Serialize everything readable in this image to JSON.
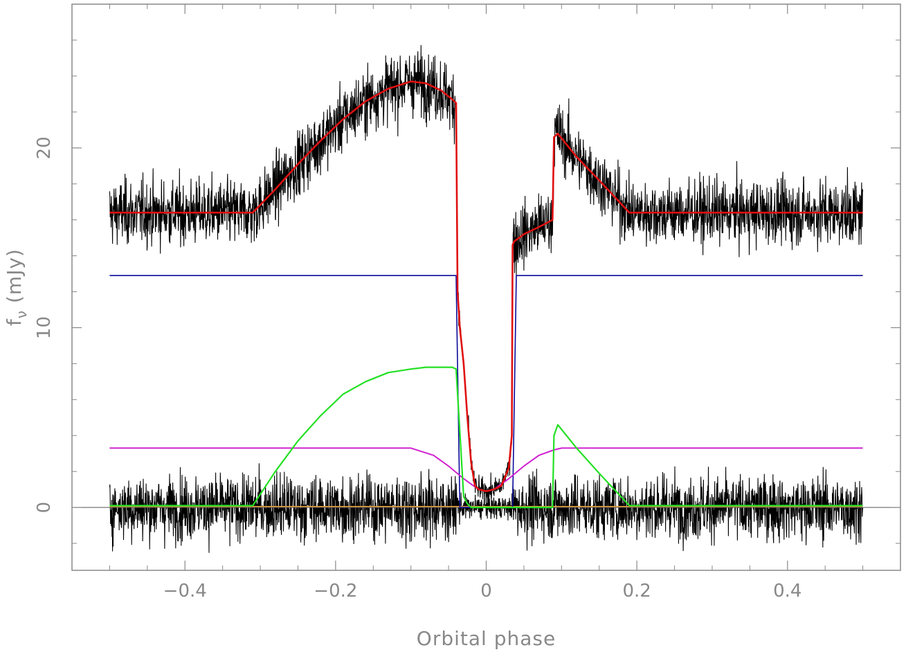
{
  "chart_data": {
    "type": "line",
    "title": "",
    "xlabel": "Orbital phase",
    "ylabel": "f_ν (mJy)",
    "ylabel_main": "f",
    "ylabel_sub": "ν",
    "ylabel_units": " (mJy)",
    "xlim": [
      -0.55,
      0.55
    ],
    "ylim": [
      -3.5,
      28
    ],
    "xticks": [
      -0.4,
      -0.2,
      0,
      0.2,
      0.4
    ],
    "xtick_labels": [
      "−0.4",
      "−0.2",
      "0",
      "0.2",
      "0.4"
    ],
    "yticks": [
      0,
      10,
      20
    ],
    "ytick_labels": [
      "0",
      "10",
      "20"
    ],
    "grid": false,
    "zero_line": 0,
    "colors": {
      "data": "#000000",
      "total_model": "#e01010",
      "white_dwarf": "#0a0a9a",
      "bright_spot": "#22e022",
      "disc": "#d020d0",
      "secondary": "#e8a040",
      "axes": "#888888"
    },
    "series": [
      {
        "key": "total_model",
        "color": "#e01010",
        "width": 2.6,
        "x": [
          -0.5,
          -0.31,
          -0.28,
          -0.25,
          -0.22,
          -0.19,
          -0.16,
          -0.13,
          -0.1,
          -0.08,
          -0.06,
          -0.045,
          -0.04,
          -0.038,
          -0.035,
          -0.03,
          -0.025,
          -0.02,
          -0.015,
          -0.01,
          0,
          0.01,
          0.02,
          0.03,
          0.034,
          0.035,
          0.037,
          0.05,
          0.07,
          0.088,
          0.09,
          0.095,
          0.12,
          0.15,
          0.19,
          0.5
        ],
        "y": [
          16.4,
          16.4,
          17.7,
          19.1,
          20.4,
          21.6,
          22.6,
          23.3,
          23.7,
          23.6,
          23.2,
          22.7,
          22.5,
          12.0,
          10.0,
          8.0,
          5.0,
          2.5,
          1.2,
          1.0,
          0.9,
          1.0,
          1.2,
          2.2,
          4.0,
          14.6,
          14.8,
          15.2,
          15.6,
          16.0,
          20.6,
          20.8,
          19.5,
          18.2,
          16.4,
          16.4
        ]
      },
      {
        "key": "white_dwarf",
        "color": "#0a0a9a",
        "width": 1.6,
        "x": [
          -0.5,
          -0.04,
          -0.035,
          -0.03,
          0.03,
          0.035,
          0.04,
          0.5
        ],
        "y": [
          12.9,
          12.9,
          0.0,
          0.0,
          0.0,
          0.0,
          12.9,
          12.9
        ]
      },
      {
        "key": "bright_spot",
        "color": "#22e022",
        "width": 2.2,
        "x": [
          -0.5,
          -0.31,
          -0.28,
          -0.25,
          -0.22,
          -0.19,
          -0.16,
          -0.13,
          -0.1,
          -0.08,
          -0.06,
          -0.045,
          -0.04,
          -0.03,
          -0.025,
          -0.02,
          0.088,
          0.09,
          0.095,
          0.12,
          0.15,
          0.19,
          0.5
        ],
        "y": [
          0.1,
          0.1,
          2.0,
          3.7,
          5.1,
          6.3,
          7.0,
          7.5,
          7.7,
          7.8,
          7.8,
          7.8,
          7.7,
          0.6,
          0.2,
          0.0,
          0.0,
          4.0,
          4.6,
          3.3,
          1.9,
          0.1,
          0.1
        ]
      },
      {
        "key": "disc",
        "color": "#d020d0",
        "width": 2.0,
        "x": [
          -0.5,
          -0.1,
          -0.07,
          -0.05,
          -0.03,
          -0.02,
          -0.01,
          0,
          0.01,
          0.02,
          0.03,
          0.05,
          0.07,
          0.09,
          0.1,
          0.5
        ],
        "y": [
          3.3,
          3.3,
          2.9,
          2.3,
          1.6,
          1.3,
          1.0,
          0.9,
          1.0,
          1.3,
          1.6,
          2.3,
          2.9,
          3.2,
          3.3,
          3.3
        ]
      },
      {
        "key": "secondary",
        "color": "#e8a040",
        "width": 1.6,
        "x": [
          -0.5,
          0.5
        ],
        "y": [
          0.05,
          0.05
        ]
      }
    ],
    "noisy_data": [
      {
        "key": "observed_lightcurve",
        "color": "#000000",
        "noise_sd": 0.9,
        "x": [
          -0.5,
          -0.31,
          -0.28,
          -0.25,
          -0.22,
          -0.19,
          -0.16,
          -0.13,
          -0.1,
          -0.08,
          -0.06,
          -0.045,
          -0.04,
          -0.038,
          -0.035,
          -0.03,
          -0.025,
          -0.02,
          -0.015,
          -0.01,
          0,
          0.01,
          0.02,
          0.03,
          0.034,
          0.035,
          0.037,
          0.05,
          0.07,
          0.088,
          0.09,
          0.095,
          0.12,
          0.15,
          0.19,
          0.5
        ],
        "y": [
          16.4,
          16.4,
          17.7,
          19.1,
          20.4,
          21.6,
          22.6,
          23.3,
          23.7,
          23.6,
          23.2,
          22.7,
          22.5,
          12.0,
          10.0,
          8.0,
          5.0,
          2.5,
          1.2,
          1.0,
          0.9,
          1.0,
          1.2,
          2.2,
          4.0,
          14.6,
          14.8,
          15.2,
          15.6,
          16.0,
          20.6,
          20.8,
          19.5,
          18.2,
          16.4,
          16.4
        ]
      },
      {
        "key": "residuals",
        "color": "#000000",
        "noise_sd": 0.9,
        "x": [
          -0.5,
          0.5
        ],
        "y": [
          0.0,
          0.0
        ]
      }
    ]
  }
}
